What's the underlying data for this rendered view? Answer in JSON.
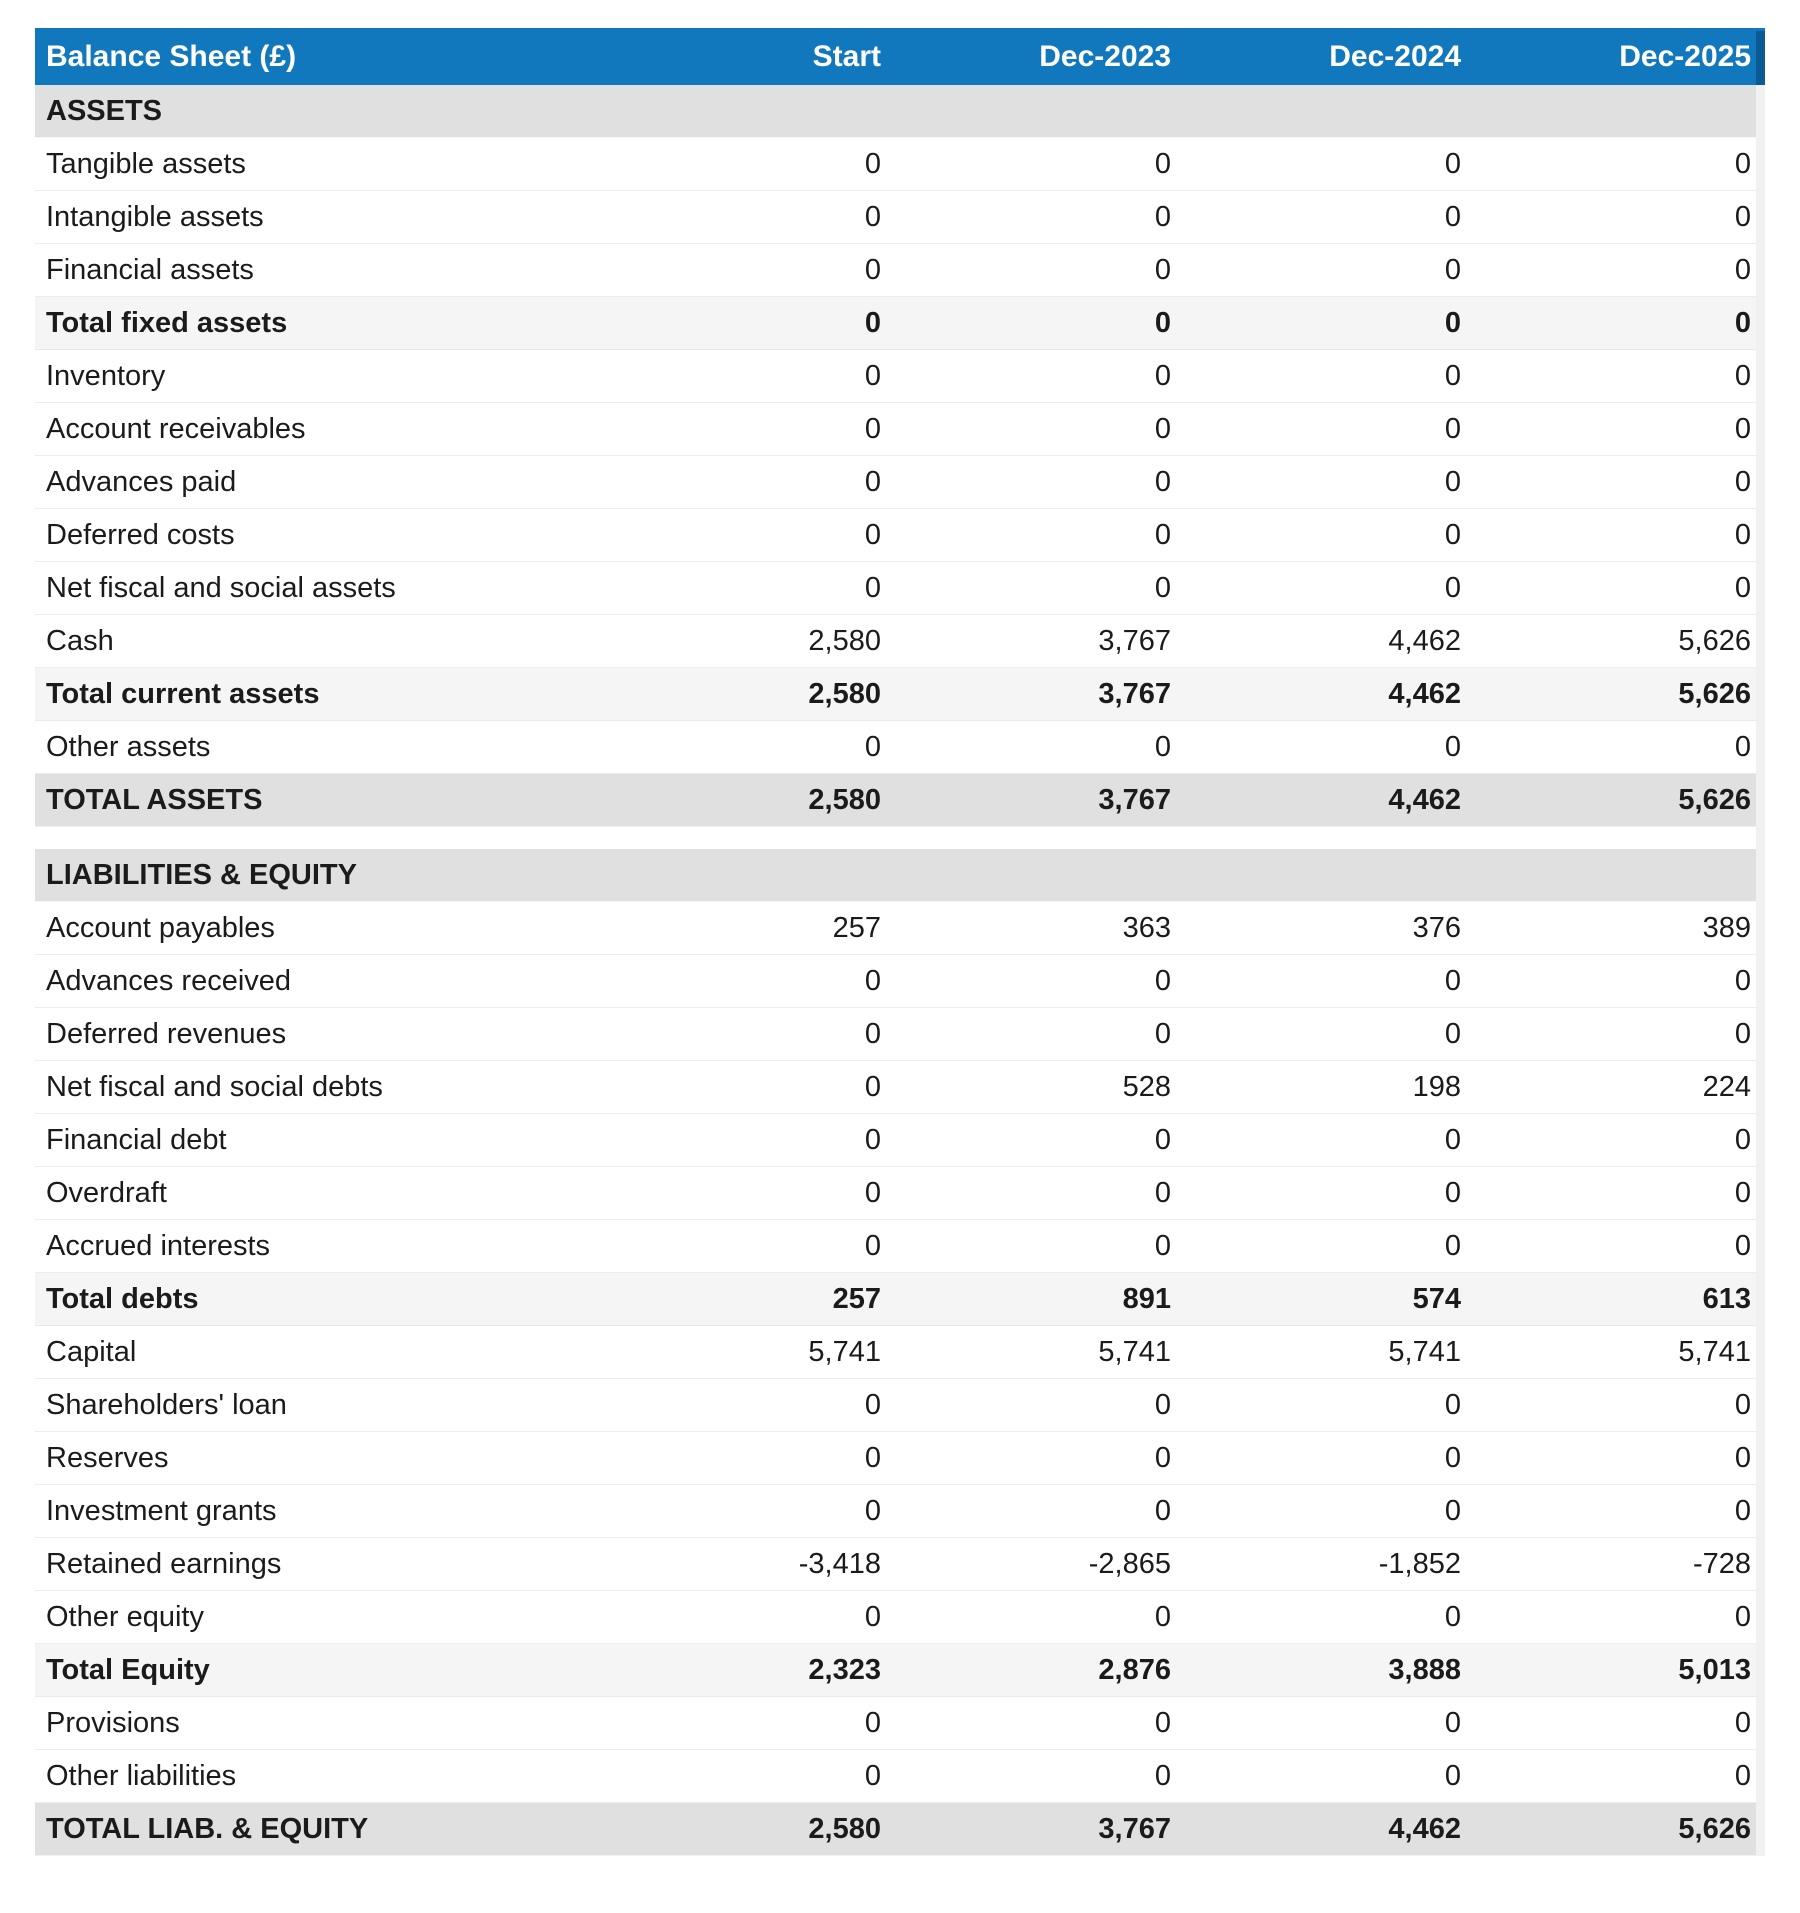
{
  "table": {
    "title": "Balance Sheet (£)",
    "currency_symbol": "£",
    "columns": [
      "Start",
      "Dec-2023",
      "Dec-2024",
      "Dec-2025"
    ],
    "rows": [
      {
        "type": "section",
        "label": "ASSETS",
        "values": []
      },
      {
        "type": "item",
        "label": "Tangible assets",
        "values": [
          "0",
          "0",
          "0",
          "0"
        ]
      },
      {
        "type": "item",
        "label": "Intangible assets",
        "values": [
          "0",
          "0",
          "0",
          "0"
        ]
      },
      {
        "type": "item",
        "label": "Financial assets",
        "values": [
          "0",
          "0",
          "0",
          "0"
        ]
      },
      {
        "type": "subtotal",
        "label": "Total fixed assets",
        "values": [
          "0",
          "0",
          "0",
          "0"
        ]
      },
      {
        "type": "item",
        "label": "Inventory",
        "values": [
          "0",
          "0",
          "0",
          "0"
        ]
      },
      {
        "type": "item",
        "label": "Account receivables",
        "values": [
          "0",
          "0",
          "0",
          "0"
        ]
      },
      {
        "type": "item",
        "label": "Advances paid",
        "values": [
          "0",
          "0",
          "0",
          "0"
        ]
      },
      {
        "type": "item",
        "label": "Deferred costs",
        "values": [
          "0",
          "0",
          "0",
          "0"
        ]
      },
      {
        "type": "item",
        "label": "Net fiscal and social assets",
        "values": [
          "0",
          "0",
          "0",
          "0"
        ]
      },
      {
        "type": "item",
        "label": "Cash",
        "values": [
          "2,580",
          "3,767",
          "4,462",
          "5,626"
        ]
      },
      {
        "type": "subtotal",
        "label": "Total current assets",
        "values": [
          "2,580",
          "3,767",
          "4,462",
          "5,626"
        ]
      },
      {
        "type": "item",
        "label": "Other assets",
        "values": [
          "0",
          "0",
          "0",
          "0"
        ]
      },
      {
        "type": "total",
        "label": "TOTAL ASSETS",
        "values": [
          "2,580",
          "3,767",
          "4,462",
          "5,626"
        ]
      },
      {
        "type": "gap",
        "label": "",
        "values": []
      },
      {
        "type": "section",
        "label": "LIABILITIES & EQUITY",
        "values": []
      },
      {
        "type": "item",
        "label": "Account payables",
        "values": [
          "257",
          "363",
          "376",
          "389"
        ]
      },
      {
        "type": "item",
        "label": "Advances received",
        "values": [
          "0",
          "0",
          "0",
          "0"
        ]
      },
      {
        "type": "item",
        "label": "Deferred revenues",
        "values": [
          "0",
          "0",
          "0",
          "0"
        ]
      },
      {
        "type": "item",
        "label": "Net fiscal and social debts",
        "values": [
          "0",
          "528",
          "198",
          "224"
        ]
      },
      {
        "type": "item",
        "label": "Financial debt",
        "values": [
          "0",
          "0",
          "0",
          "0"
        ]
      },
      {
        "type": "item",
        "label": "Overdraft",
        "values": [
          "0",
          "0",
          "0",
          "0"
        ]
      },
      {
        "type": "item",
        "label": "Accrued interests",
        "values": [
          "0",
          "0",
          "0",
          "0"
        ]
      },
      {
        "type": "subtotal",
        "label": "Total debts",
        "values": [
          "257",
          "891",
          "574",
          "613"
        ]
      },
      {
        "type": "item",
        "label": "Capital",
        "values": [
          "5,741",
          "5,741",
          "5,741",
          "5,741"
        ]
      },
      {
        "type": "item",
        "label": "Shareholders' loan",
        "values": [
          "0",
          "0",
          "0",
          "0"
        ]
      },
      {
        "type": "item",
        "label": "Reserves",
        "values": [
          "0",
          "0",
          "0",
          "0"
        ]
      },
      {
        "type": "item",
        "label": "Investment grants",
        "values": [
          "0",
          "0",
          "0",
          "0"
        ]
      },
      {
        "type": "item",
        "label": "Retained earnings",
        "values": [
          "-3,418",
          "-2,865",
          "-1,852",
          "-728"
        ]
      },
      {
        "type": "item",
        "label": "Other equity",
        "values": [
          "0",
          "0",
          "0",
          "0"
        ]
      },
      {
        "type": "subtotal",
        "label": "Total Equity",
        "values": [
          "2,323",
          "2,876",
          "3,888",
          "5,013"
        ]
      },
      {
        "type": "item",
        "label": "Provisions",
        "values": [
          "0",
          "0",
          "0",
          "0"
        ]
      },
      {
        "type": "item",
        "label": "Other liabilities",
        "values": [
          "0",
          "0",
          "0",
          "0"
        ]
      },
      {
        "type": "total",
        "label": "TOTAL LIAB. & EQUITY",
        "values": [
          "2,580",
          "3,767",
          "4,462",
          "5,626"
        ]
      }
    ]
  },
  "colors": {
    "header_bg": "#1278bd",
    "header_edge": "#0b5a91",
    "header_text": "#ffffff",
    "section_bg": "#e0e0e0",
    "subtotal_bg": "#f5f5f5",
    "total_bg": "#e0e0e0",
    "body_text": "#1b1b1b"
  }
}
